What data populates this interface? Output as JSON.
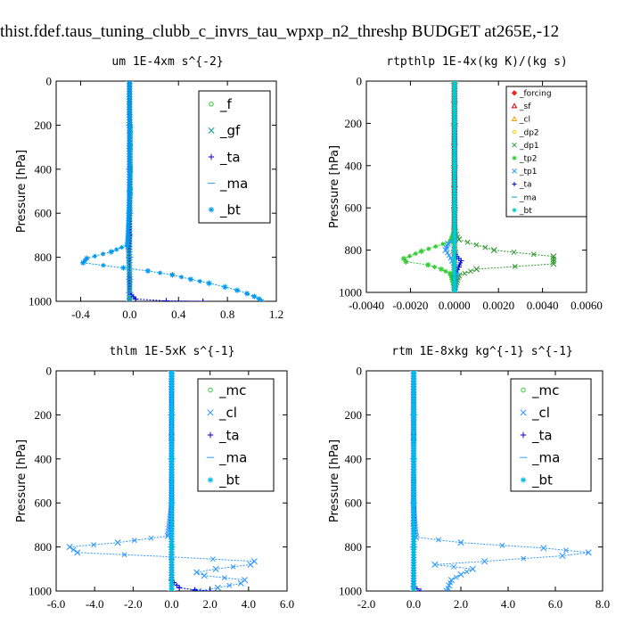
{
  "figure": {
    "title": "thist.fdef.taus_tuning_clubb_c_invrs_tau_wpxp_n2_threshp  BUDGET at265E,-12"
  },
  "chart_data": [
    {
      "id": "um",
      "type": "line",
      "title": "um   1E-4xm s^{-2}",
      "xlabel": "",
      "ylabel": "Pressure [hPa]",
      "xlim": [
        -0.6,
        1.2
      ],
      "ylim": [
        1000,
        0
      ],
      "xticks": [
        "-0.4",
        "0.0",
        "0.4",
        "0.8",
        "1.2"
      ],
      "xtick_values": [
        -0.4,
        0.0,
        0.4,
        0.8,
        1.2
      ],
      "yticks": [
        "0",
        "200",
        "400",
        "600",
        "800",
        "1000"
      ],
      "ytick_values": [
        0,
        200,
        400,
        600,
        800,
        1000
      ],
      "legend_position": "top-right",
      "legend_font": 15,
      "series": [
        {
          "name": "_f",
          "color": "#33cc33",
          "marker": "circle",
          "x": [
            0,
            0,
            0,
            0,
            0,
            0,
            0,
            0,
            0,
            0
          ],
          "y": [
            0,
            100,
            200,
            300,
            400,
            500,
            600,
            700,
            800,
            1000
          ]
        },
        {
          "name": "_gf",
          "color": "#009999",
          "marker": "x",
          "x": [
            0,
            0,
            0.005,
            0.005,
            0.005,
            0.005,
            0,
            -0.01,
            0,
            0
          ],
          "y": [
            0,
            140,
            220,
            300,
            400,
            500,
            600,
            750,
            900,
            1000
          ]
        },
        {
          "name": "_ta",
          "color": "#0000dd",
          "marker": "plus",
          "x": [
            0,
            0,
            0,
            0,
            0,
            0,
            0,
            0,
            0.05,
            0.3,
            0.6
          ],
          "y": [
            0,
            200,
            400,
            600,
            700,
            800,
            900,
            960,
            990,
            998,
            1000
          ]
        },
        {
          "name": "_ma",
          "color": "#3399ff",
          "marker": "dash",
          "x": [
            0,
            0,
            0,
            0,
            0,
            0,
            0,
            0
          ],
          "y": [
            0,
            200,
            400,
            600,
            800,
            900,
            960,
            1000
          ]
        },
        {
          "name": "_bt",
          "color": "#0099ee",
          "marker": "star",
          "x": [
            0,
            0,
            0,
            -0.02,
            -0.15,
            -0.35,
            -0.38,
            -0.05,
            0.15,
            0.35,
            0.5,
            0.65,
            0.78,
            0.88,
            0.96,
            1.02,
            1.06,
            1.08
          ],
          "y": [
            0,
            200,
            500,
            745,
            775,
            805,
            825,
            848,
            862,
            880,
            900,
            918,
            935,
            950,
            965,
            978,
            990,
            1000
          ]
        }
      ]
    },
    {
      "id": "rtpthlp",
      "type": "line",
      "title": "rtpthlp   1E-4x(kg K)/(kg s)",
      "xlabel": "",
      "ylabel": "Pressure [hPa]",
      "xlim": [
        -0.004,
        0.006
      ],
      "ylim": [
        1000,
        0
      ],
      "xticks": [
        "-0.0040",
        "-0.0020",
        "0.0000",
        "0.0020",
        "0.0040",
        "0.0060"
      ],
      "xtick_values": [
        -0.004,
        -0.002,
        0.0,
        0.002,
        0.004,
        0.006
      ],
      "yticks": [
        "0",
        "200",
        "400",
        "600",
        "800",
        "1000"
      ],
      "ytick_values": [
        0,
        200,
        400,
        600,
        800,
        1000
      ],
      "legend_position": "top-right",
      "legend_font": 9,
      "series": [
        {
          "name": "_forcing",
          "color": "#ee2222",
          "marker": "diamond",
          "x": [
            0,
            0,
            0,
            0,
            0,
            0,
            0,
            0,
            0,
            0
          ],
          "y": [
            0,
            100,
            200,
            300,
            400,
            500,
            600,
            700,
            800,
            1000
          ]
        },
        {
          "name": "_sf",
          "color": "#dd0000",
          "marker": "triangle",
          "x": [
            0,
            0,
            0,
            0,
            0,
            0
          ],
          "y": [
            0,
            200,
            400,
            600,
            800,
            1000
          ]
        },
        {
          "name": "_cl",
          "color": "#ff9900",
          "marker": "triangle",
          "x": [
            0,
            0,
            0,
            0,
            0,
            0
          ],
          "y": [
            0,
            200,
            400,
            600,
            800,
            1000
          ]
        },
        {
          "name": "_dp2",
          "color": "#ffcc00",
          "marker": "circle",
          "x": [
            0,
            0,
            0,
            0,
            0,
            0
          ],
          "y": [
            0,
            200,
            400,
            600,
            800,
            1000
          ]
        },
        {
          "name": "_dp1",
          "color": "#339933",
          "marker": "x",
          "x": [
            0,
            0,
            0,
            0.0002,
            0.0018,
            0.0045,
            0.0045,
            0.001,
            0.0002,
            0
          ],
          "y": [
            0,
            400,
            700,
            750,
            800,
            830,
            865,
            890,
            920,
            1000
          ]
        },
        {
          "name": "_tp2",
          "color": "#33cc33",
          "marker": "star",
          "x": [
            0,
            0,
            0,
            -0.0002,
            -0.0015,
            -0.0023,
            -0.0022,
            -0.0012,
            -0.0006,
            -0.0002,
            -0.0001,
            0
          ],
          "y": [
            0,
            400,
            700,
            760,
            805,
            840,
            855,
            870,
            890,
            910,
            940,
            1000
          ]
        },
        {
          "name": "_tp1",
          "color": "#3399ff",
          "marker": "x",
          "x": [
            0,
            0,
            0,
            -0.0003,
            -0.0004,
            -0.0001,
            0.0001,
            0
          ],
          "y": [
            0,
            600,
            750,
            770,
            800,
            850,
            900,
            1000
          ]
        },
        {
          "name": "_ta",
          "color": "#0000dd",
          "marker": "plus",
          "x": [
            0,
            0,
            0.0001,
            0.0003,
            0.0002,
            0,
            0
          ],
          "y": [
            0,
            800,
            830,
            850,
            880,
            920,
            1000
          ]
        },
        {
          "name": "_ma",
          "color": "#00aacc",
          "marker": "dash",
          "x": [
            0,
            0,
            0,
            0,
            0,
            0
          ],
          "y": [
            0,
            200,
            400,
            600,
            800,
            1000
          ]
        },
        {
          "name": "_bt",
          "color": "#00cccc",
          "marker": "star",
          "x": [
            0,
            0,
            0,
            0,
            0,
            0
          ],
          "y": [
            0,
            200,
            400,
            600,
            800,
            1000
          ]
        }
      ]
    },
    {
      "id": "thlm",
      "type": "line",
      "title": "thlm   1E-5xK s^{-1}",
      "xlabel": "",
      "ylabel": "Pressure [hPa]",
      "xlim": [
        -6.0,
        6.0
      ],
      "ylim": [
        1000,
        0
      ],
      "xticks": [
        "-6.0",
        "-4.0",
        "-2.0",
        "0.0",
        "2.0",
        "4.0",
        "6.0"
      ],
      "xtick_values": [
        -6,
        -4,
        -2,
        0,
        2,
        4,
        6
      ],
      "yticks": [
        "0",
        "200",
        "400",
        "600",
        "800",
        "1000"
      ],
      "ytick_values": [
        0,
        200,
        400,
        600,
        800,
        1000
      ],
      "legend_position": "top-right",
      "legend_font": 15,
      "series": [
        {
          "name": "_mc",
          "color": "#33cc33",
          "marker": "circle",
          "x": [
            0,
            0,
            0,
            0,
            0,
            0,
            0,
            0,
            0,
            0
          ],
          "y": [
            0,
            100,
            200,
            300,
            400,
            500,
            600,
            700,
            800,
            1000
          ]
        },
        {
          "name": "_cl",
          "color": "#3399ff",
          "marker": "x",
          "x": [
            0,
            0,
            0,
            -0.2,
            -2.8,
            -5.3,
            -4.9,
            0,
            4.3,
            4.1,
            2.3,
            1.3,
            1.7,
            3.8,
            3.6,
            2.4,
            1.4
          ],
          "y": [
            0,
            300,
            600,
            750,
            780,
            800,
            825,
            845,
            865,
            880,
            900,
            915,
            930,
            950,
            965,
            985,
            1000
          ]
        },
        {
          "name": "_ta",
          "color": "#0000dd",
          "marker": "plus",
          "x": [
            0,
            0,
            0,
            0,
            0.4,
            1.2,
            2.0
          ],
          "y": [
            0,
            400,
            800,
            950,
            985,
            995,
            1000
          ]
        },
        {
          "name": "_ma",
          "color": "#3399ff",
          "marker": "dash",
          "x": [
            0,
            0,
            0,
            0,
            0,
            0
          ],
          "y": [
            0,
            200,
            400,
            600,
            800,
            1000
          ]
        },
        {
          "name": "_bt",
          "color": "#00bbee",
          "marker": "star",
          "x": [
            0,
            0,
            0,
            0,
            0,
            0
          ],
          "y": [
            0,
            200,
            400,
            600,
            800,
            1000
          ]
        }
      ]
    },
    {
      "id": "rtm",
      "type": "line",
      "title": "rtm   1E-8xkg kg^{-1} s^{-1}",
      "xlabel": "",
      "ylabel": "Pressure [hPa]",
      "xlim": [
        -2.0,
        8.0
      ],
      "ylim": [
        1000,
        0
      ],
      "xticks": [
        "-2.0",
        "0.0",
        "2.0",
        "4.0",
        "6.0",
        "8.0"
      ],
      "xtick_values": [
        -2,
        0,
        2,
        4,
        6,
        8
      ],
      "yticks": [
        "0",
        "200",
        "400",
        "600",
        "800",
        "1000"
      ],
      "ytick_values": [
        0,
        200,
        400,
        600,
        800,
        1000
      ],
      "legend_position": "top-right",
      "legend_font": 15,
      "series": [
        {
          "name": "_mc",
          "color": "#33cc33",
          "marker": "circle",
          "x": [
            0,
            0,
            0,
            0,
            0,
            0,
            0,
            0,
            0,
            0
          ],
          "y": [
            0,
            100,
            200,
            300,
            400,
            500,
            600,
            700,
            800,
            1000
          ]
        },
        {
          "name": "_cl",
          "color": "#3399ff",
          "marker": "x",
          "x": [
            0,
            0,
            0,
            0.1,
            2.0,
            5.5,
            7.4,
            6.3,
            3.0,
            0.9,
            2.5,
            2.0,
            1.6,
            1.5,
            1.4
          ],
          "y": [
            0,
            300,
            600,
            755,
            780,
            805,
            825,
            840,
            865,
            880,
            900,
            925,
            950,
            975,
            1000
          ]
        },
        {
          "name": "_ta",
          "color": "#0000dd",
          "marker": "plus",
          "x": [
            0,
            0,
            0,
            0,
            0.3
          ],
          "y": [
            0,
            400,
            800,
            980,
            1000
          ]
        },
        {
          "name": "_ma",
          "color": "#3399ff",
          "marker": "dash",
          "x": [
            0,
            0,
            0,
            0,
            0,
            0
          ],
          "y": [
            0,
            200,
            400,
            600,
            800,
            1000
          ]
        },
        {
          "name": "_bt",
          "color": "#00bbee",
          "marker": "star",
          "x": [
            0,
            0,
            0,
            0,
            0,
            0
          ],
          "y": [
            0,
            200,
            400,
            600,
            800,
            1000
          ]
        }
      ]
    }
  ]
}
